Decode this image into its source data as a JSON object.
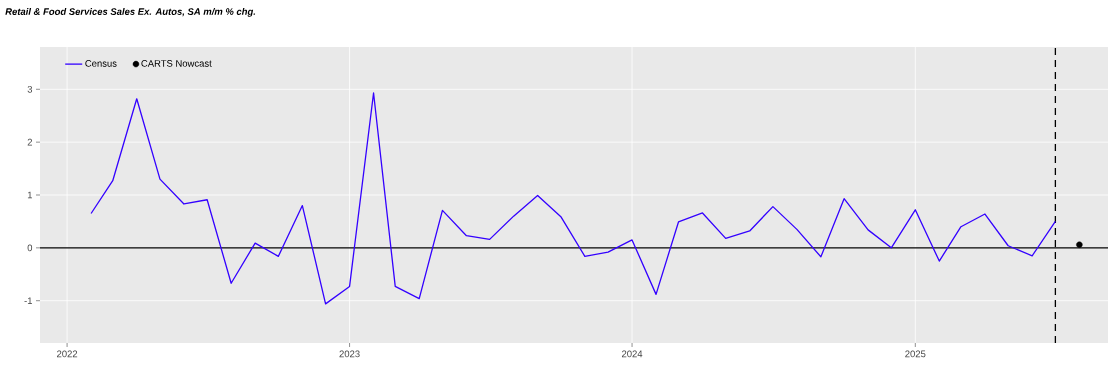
{
  "chart_data": {
    "type": "line",
    "title": "Retail & Food Services Sales Ex. Autos, SA m/m % chg.",
    "x": [
      "2022-02",
      "2022-03",
      "2022-04",
      "2022-05",
      "2022-06",
      "2022-07",
      "2022-08",
      "2022-09",
      "2022-10",
      "2022-11",
      "2022-12",
      "2023-01",
      "2023-02",
      "2023-03",
      "2023-04",
      "2023-05",
      "2023-06",
      "2023-07",
      "2023-08",
      "2023-09",
      "2023-10",
      "2023-11",
      "2023-12",
      "2024-01",
      "2024-02",
      "2024-03",
      "2024-04",
      "2024-05",
      "2024-06",
      "2024-07",
      "2024-08",
      "2024-09",
      "2024-10",
      "2024-11",
      "2024-12",
      "2025-01",
      "2025-02",
      "2025-03",
      "2025-04",
      "2025-05",
      "2025-06",
      "2025-07"
    ],
    "series": [
      {
        "name": "Census",
        "color": "#3300ff",
        "line_style": "solid",
        "values": [
          0.65,
          1.27,
          2.82,
          1.3,
          0.83,
          0.91,
          -0.67,
          0.09,
          -0.16,
          0.8,
          -1.06,
          -0.73,
          2.93,
          -0.73,
          -0.96,
          0.71,
          0.23,
          0.16,
          0.6,
          0.99,
          0.59,
          -0.16,
          -0.08,
          0.15,
          -0.88,
          0.49,
          0.66,
          0.18,
          0.32,
          0.78,
          0.35,
          -0.17,
          0.93,
          0.34,
          0.0,
          0.72,
          -0.25,
          0.4,
          0.64,
          0.04,
          -0.15,
          0.5
        ]
      },
      {
        "name": "CARTS Nowcast",
        "type": "scatter",
        "color": "#000000",
        "marker": "circle",
        "x": [
          "2025-08"
        ],
        "values": [
          0.06
        ]
      }
    ],
    "xlim": [
      "2021-11-27",
      "2025-09-07"
    ],
    "xticks": [
      "2022",
      "2023",
      "2024",
      "2025"
    ],
    "ylim": [
      -1.8,
      3.8
    ],
    "yticks": [
      -1,
      0,
      1,
      2,
      3
    ],
    "grid": true,
    "legend": "top left",
    "ref_lines": [
      {
        "axis": "y",
        "value": 0,
        "color": "#000000",
        "line_style": "solid"
      },
      {
        "axis": "x",
        "value": "2025-07",
        "color": "#000000",
        "line_style": "dashed"
      }
    ]
  }
}
